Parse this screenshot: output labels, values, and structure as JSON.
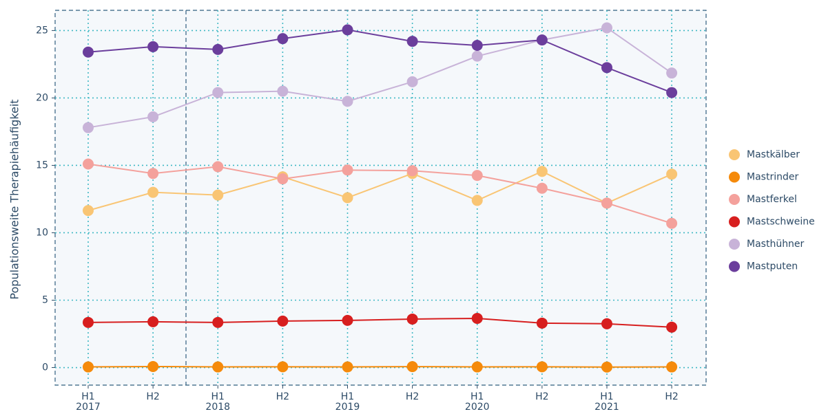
{
  "chart_data": {
    "type": "line",
    "y_label": "Populationsweite Therapiehäufigkeit",
    "categories": [
      "H1",
      "H2",
      "H1",
      "H2",
      "H1",
      "H2",
      "H1",
      "H2",
      "H1",
      "H2"
    ],
    "category_groups": [
      "2017",
      null,
      "2018",
      null,
      "2019",
      null,
      "2020",
      null,
      "2021",
      null
    ],
    "ylim": [
      -1.3,
      26.5
    ],
    "yticks": [
      0,
      5,
      10,
      15,
      20,
      25
    ],
    "grid": true,
    "series": [
      {
        "name": "Mastkälber",
        "color": "#f9c574",
        "values": [
          11.65,
          13.0,
          12.8,
          14.15,
          12.6,
          14.4,
          12.4,
          14.55,
          12.2,
          14.35
        ]
      },
      {
        "name": "Mastrinder",
        "color": "#f58a0b",
        "values": [
          0.05,
          0.08,
          0.05,
          0.06,
          0.05,
          0.07,
          0.05,
          0.06,
          0.04,
          0.05
        ]
      },
      {
        "name": "Mastferkel",
        "color": "#f4a19c",
        "values": [
          15.1,
          14.4,
          14.9,
          14.0,
          14.65,
          14.6,
          14.25,
          13.3,
          12.2,
          10.7
        ]
      },
      {
        "name": "Mastschweine",
        "color": "#d71f1f",
        "values": [
          3.35,
          3.4,
          3.35,
          3.45,
          3.5,
          3.6,
          3.65,
          3.3,
          3.25,
          3.0
        ]
      },
      {
        "name": "Masthühner",
        "color": "#c8b3d8",
        "values": [
          17.8,
          18.6,
          20.4,
          20.5,
          19.75,
          21.2,
          23.1,
          24.3,
          25.2,
          21.85
        ]
      },
      {
        "name": "Mastputen",
        "color": "#6b3e9c",
        "values": [
          23.4,
          23.8,
          23.6,
          24.4,
          25.05,
          24.2,
          23.9,
          24.3,
          22.25,
          20.4
        ]
      }
    ]
  }
}
